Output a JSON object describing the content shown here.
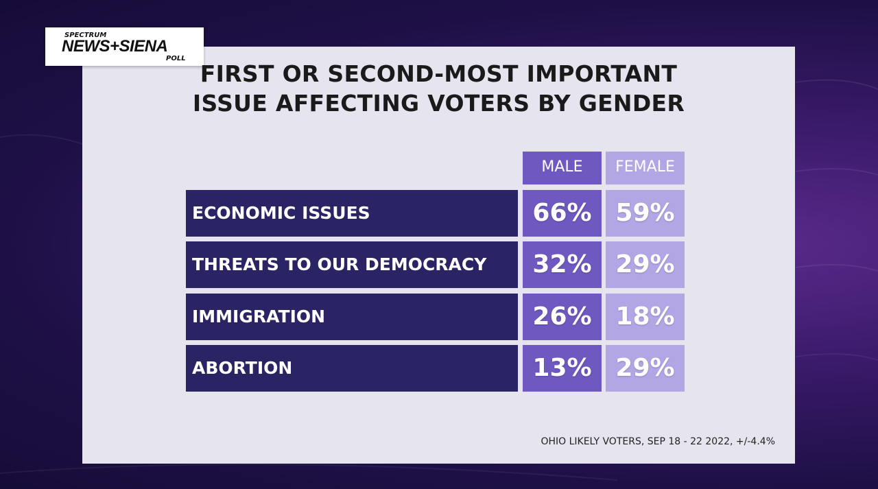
{
  "logo": {
    "top": "SPECTRUM",
    "main": "NEWS+SIENA",
    "bottom": "POLL"
  },
  "title_line1": "FIRST OR SECOND-MOST IMPORTANT",
  "title_line2": "ISSUE AFFECTING VOTERS BY GENDER",
  "footnote": "OHIO LIKELY VOTERS, SEP 18 - 22 2022, +/-4.4%",
  "colors": {
    "male": "#6f58bf",
    "female": "#b2a6e4",
    "label_bg": "#2a2364",
    "panel": "#e6e4ee"
  },
  "chart_data": {
    "type": "table",
    "title": "FIRST OR SECOND-MOST IMPORTANT ISSUE AFFECTING VOTERS BY GENDER",
    "columns": [
      "MALE",
      "FEMALE"
    ],
    "rows": [
      {
        "label": "ECONOMIC ISSUES",
        "male": "66%",
        "female": "59%"
      },
      {
        "label": "THREATS TO OUR DEMOCRACY",
        "male": "32%",
        "female": "29%"
      },
      {
        "label": "IMMIGRATION",
        "male": "26%",
        "female": "18%"
      },
      {
        "label": "ABORTION",
        "male": "13%",
        "female": "29%"
      }
    ]
  }
}
